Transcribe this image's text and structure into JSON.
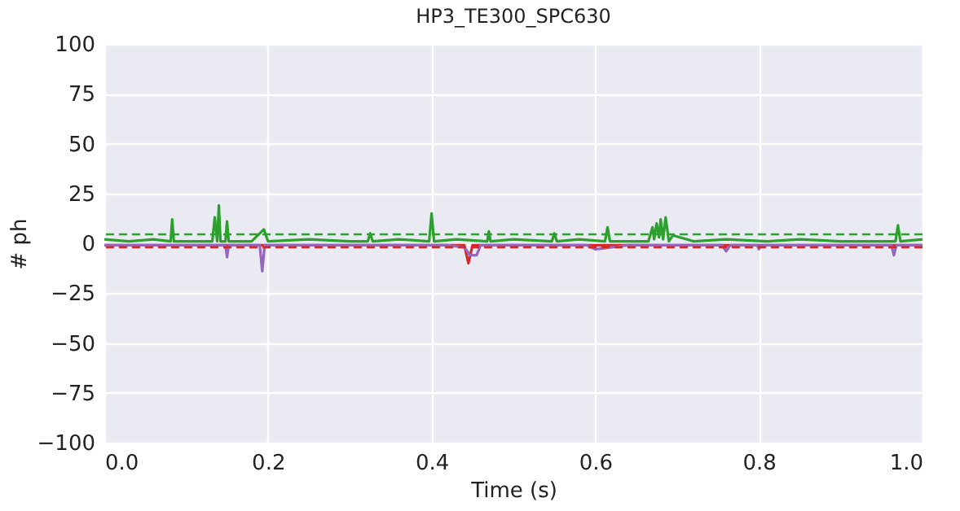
{
  "chart_data": {
    "type": "line",
    "title": "HP3_TE300_SPC630",
    "xlabel": "Time (s)",
    "ylabel": "# ph",
    "xlim": [
      0,
      1
    ],
    "ylim": [
      -100,
      100
    ],
    "xticks": [
      {
        "value": 0,
        "label": "0.0"
      },
      {
        "value": 0.2,
        "label": "0.2"
      },
      {
        "value": 0.4,
        "label": "0.4"
      },
      {
        "value": 0.6,
        "label": "0.6"
      },
      {
        "value": 0.8,
        "label": "0.8"
      },
      {
        "value": 1,
        "label": "1.0"
      }
    ],
    "yticks": [
      {
        "value": -100,
        "label": "−100"
      },
      {
        "value": -75,
        "label": "−75"
      },
      {
        "value": -50,
        "label": "−50"
      },
      {
        "value": -25,
        "label": "−25"
      },
      0,
      25,
      50,
      75,
      100
    ],
    "grid": true,
    "legend": false,
    "marker": "none",
    "line_style": "solid",
    "series": [
      {
        "color": "#d62728",
        "x": [
          0,
          0.05,
          0.1,
          0.15,
          0.2,
          0.25,
          0.3,
          0.35,
          0.4,
          0.44,
          0.445,
          0.45,
          0.5,
          0.55,
          0.6,
          0.65,
          0.7,
          0.75,
          0.8,
          0.85,
          0.9,
          0.95,
          1
        ],
        "values": [
          -1,
          -1,
          -1,
          -1,
          -1,
          -1,
          -1,
          -1,
          -1,
          -1,
          -10,
          -1,
          -1,
          -1,
          -1,
          -1,
          -1,
          -1,
          -1,
          -1,
          -1,
          -1,
          -1
        ]
      },
      {
        "color": "#9467bd",
        "x": [
          0,
          0.04,
          0.08,
          0.12,
          0.148,
          0.15,
          0.152,
          0.19,
          0.193,
          0.196,
          0.24,
          0.28,
          0.33,
          0.38,
          0.42,
          0.44,
          0.447,
          0.455,
          0.46,
          0.5,
          0.55,
          0.59,
          0.6,
          0.64,
          0.7,
          0.755,
          0.76,
          0.765,
          0.798,
          0.8,
          0.802,
          0.85,
          0.9,
          0.962,
          0.965,
          0.968,
          1
        ],
        "values": [
          -1,
          -1,
          -1,
          -1,
          -1,
          -7,
          -1,
          -1,
          -14,
          -1,
          -1,
          -1,
          -1,
          -1,
          -1,
          -2,
          -6,
          -6,
          -1,
          -1,
          -1,
          -1,
          -3,
          -1,
          -1,
          -1,
          -4,
          -1,
          -1,
          -3,
          -1,
          -1,
          -1,
          -1,
          -6,
          -1,
          -1
        ]
      },
      {
        "color": "#2ca02c",
        "x": [
          0,
          0.03,
          0.06,
          0.081,
          0.083,
          0.085,
          0.11,
          0.132,
          0.135,
          0.138,
          0.14,
          0.142,
          0.148,
          0.15,
          0.152,
          0.18,
          0.195,
          0.2,
          0.25,
          0.3,
          0.322,
          0.325,
          0.328,
          0.36,
          0.397,
          0.4,
          0.403,
          0.43,
          0.468,
          0.47,
          0.472,
          0.5,
          0.547,
          0.55,
          0.553,
          0.58,
          0.612,
          0.615,
          0.618,
          0.64,
          0.665,
          0.67,
          0.672,
          0.675,
          0.678,
          0.68,
          0.683,
          0.686,
          0.69,
          0.695,
          0.72,
          0.76,
          0.81,
          0.85,
          0.9,
          0.967,
          0.97,
          0.973,
          1
        ],
        "values": [
          2,
          1,
          2,
          1,
          12,
          1,
          1,
          1,
          13,
          1,
          19,
          1,
          1,
          11,
          1,
          1,
          7,
          1,
          2,
          1,
          1,
          5,
          1,
          2,
          1,
          15,
          1,
          2,
          1,
          6,
          1,
          2,
          1,
          5,
          1,
          2,
          1,
          8,
          1,
          1,
          1,
          8,
          2,
          10,
          3,
          12,
          2,
          13,
          1,
          4,
          1,
          2,
          1,
          2,
          1,
          1,
          9,
          1,
          2
        ]
      }
    ],
    "ref_lines": [
      {
        "axis": "y",
        "value": 4.5,
        "color": "#2ca02c",
        "line_style": "dashed"
      },
      {
        "axis": "y",
        "value": -2,
        "color": "#d62728",
        "line_style": "dashed"
      }
    ]
  }
}
